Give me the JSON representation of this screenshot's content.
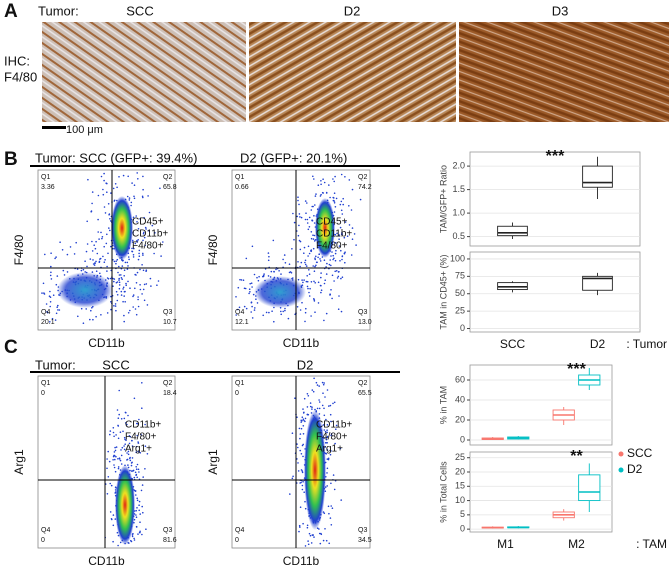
{
  "figure": {
    "panel_a": {
      "label": "A",
      "tumor_label": "Tumor:",
      "samples": [
        "SCC",
        "D2",
        "D3"
      ],
      "stain_label": [
        "IHC:",
        "F4/80"
      ],
      "scale_bar": "100 μm"
    },
    "panel_b": {
      "label": "B",
      "headers": [
        "Tumor:  SCC (GFP+: 39.4%)",
        "D2 (GFP+: 20.1%)"
      ],
      "flow_plots": [
        {
          "quadrants": [
            [
              "Q1",
              "3.36"
            ],
            [
              "Q2",
              "65.8"
            ],
            [
              "Q3",
              "10.7"
            ],
            [
              "Q4",
              "20.1"
            ]
          ],
          "gate": [
            "CD45+",
            "CD11b+",
            "F4/80+"
          ],
          "x_label": "CD11b",
          "y_label": "F4/80"
        },
        {
          "quadrants": [
            [
              "Q1",
              "0.66"
            ],
            [
              "Q2",
              "74.2"
            ],
            [
              "Q3",
              "13.0"
            ],
            [
              "Q4",
              "12.1"
            ]
          ],
          "gate": [
            "CD45+",
            "CD11b+",
            "F4/80+"
          ],
          "x_label": "CD11b",
          "y_label": "F4/80"
        }
      ]
    },
    "panel_c": {
      "label": "C",
      "headers": [
        "Tumor:",
        "SCC",
        "D2"
      ],
      "flow_plots": [
        {
          "quadrants": [
            [
              "Q1",
              "0"
            ],
            [
              "Q2",
              "18.4"
            ],
            [
              "Q3",
              "81.6"
            ],
            [
              "Q4",
              "0"
            ]
          ],
          "gate": [
            "CD11b+",
            "F4/80+",
            "Arg1+"
          ],
          "x_label": "CD11b",
          "y_label": "Arg1"
        },
        {
          "quadrants": [
            [
              "Q1",
              "0"
            ],
            [
              "Q2",
              "65.5"
            ],
            [
              "Q3",
              "34.5"
            ],
            [
              "Q4",
              "0"
            ]
          ],
          "gate": [
            "CD11b+",
            "F4/80+",
            "Arg1+"
          ],
          "x_label": "CD11b",
          "y_label": "Arg1"
        }
      ]
    }
  },
  "chart_data": [
    {
      "type": "box",
      "y_label": "TAM/GFP+ Ratio",
      "annotation": "***",
      "grid": true,
      "ylim": [
        0.3,
        2.3
      ],
      "yticks": [
        {
          "value": 0.5,
          "label": "0.5"
        },
        {
          "value": 1,
          "label": "1.0"
        },
        {
          "value": 1.5,
          "label": "1.5"
        },
        {
          "value": 2,
          "label": "2.0"
        }
      ],
      "series": [
        {
          "color": "#222222",
          "values": [
            {
              "min": 0.45,
              "q1": 0.52,
              "median": 0.58,
              "q3": 0.72,
              "max": 0.8
            },
            {
              "min": 1.3,
              "q1": 1.55,
              "median": 1.65,
              "q3": 2.0,
              "max": 2.2
            }
          ]
        }
      ]
    },
    {
      "type": "box",
      "y_label": "TAM in CD45+ (%)",
      "grid": true,
      "categories": [
        "SCC",
        "D2"
      ],
      "x_suffix": ": Tumor",
      "ylim": [
        -5,
        110
      ],
      "yticks": [
        0,
        25,
        50,
        75,
        100
      ],
      "series": [
        {
          "color": "#222222",
          "values": [
            {
              "min": 52,
              "q1": 56,
              "median": 60,
              "q3": 66,
              "max": 68
            },
            {
              "min": 48,
              "q1": 55,
              "median": 72,
              "q3": 75,
              "max": 80
            }
          ]
        }
      ]
    },
    {
      "type": "box",
      "y_label": "% in TAM",
      "annotation": "***",
      "grid": true,
      "ylim": [
        -5,
        75
      ],
      "yticks": [
        0,
        20,
        40,
        60
      ],
      "series": [
        {
          "name": "SCC",
          "color": "#f8766d",
          "values": [
            {
              "min": 0,
              "q1": 0.5,
              "median": 1,
              "q3": 2,
              "max": 3
            },
            {
              "min": 15,
              "q1": 20,
              "median": 25,
              "q3": 30,
              "max": 33
            }
          ]
        },
        {
          "name": "D2",
          "color": "#00bfc4",
          "values": [
            {
              "min": 0.5,
              "q1": 1,
              "median": 2,
              "q3": 3,
              "max": 4
            },
            {
              "min": 50,
              "q1": 55,
              "median": 60,
              "q3": 65,
              "max": 72
            }
          ]
        }
      ]
    },
    {
      "type": "box",
      "y_label": "% in Total Cells",
      "annotation": "**",
      "grid": true,
      "categories": [
        "M1",
        "M2"
      ],
      "x_suffix": ": TAM",
      "ylim": [
        -1,
        27
      ],
      "yticks": [
        0,
        5,
        10,
        15,
        20,
        25
      ],
      "series": [
        {
          "color": "#f8766d",
          "values": [
            {
              "min": 0.2,
              "q1": 0.4,
              "median": 0.5,
              "q3": 0.7,
              "max": 1
            },
            {
              "min": 3,
              "q1": 4,
              "median": 5,
              "q3": 6,
              "max": 7
            }
          ]
        },
        {
          "color": "#00bfc4",
          "values": [
            {
              "min": 0.3,
              "q1": 0.5,
              "median": 0.6,
              "q3": 0.8,
              "max": 1.1
            },
            {
              "min": 6,
              "q1": 10,
              "median": 13,
              "q3": 19,
              "max": 23
            }
          ]
        }
      ]
    }
  ]
}
